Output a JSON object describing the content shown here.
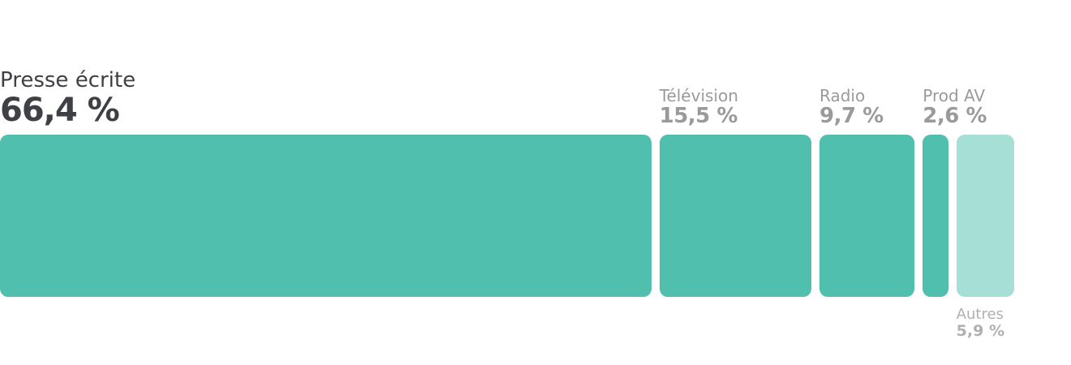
{
  "chart_data": {
    "type": "bar",
    "orientation": "stacked-horizontal",
    "categories": [
      "Presse écrite",
      "Télévision",
      "Radio",
      "Prod AV",
      "Autres"
    ],
    "values": [
      66.4,
      15.5,
      9.7,
      2.6,
      5.9
    ],
    "value_labels": [
      "66,4 %",
      "15,5 %",
      "9,7 %",
      "2,6 %",
      "5,9 %"
    ],
    "colors": [
      "#50bfad",
      "#50bfad",
      "#50bfad",
      "#50bfad",
      "#a6dfd6"
    ],
    "label_position": [
      "above",
      "above",
      "above",
      "above",
      "below"
    ],
    "title": "",
    "xlabel": "",
    "ylabel": ""
  }
}
